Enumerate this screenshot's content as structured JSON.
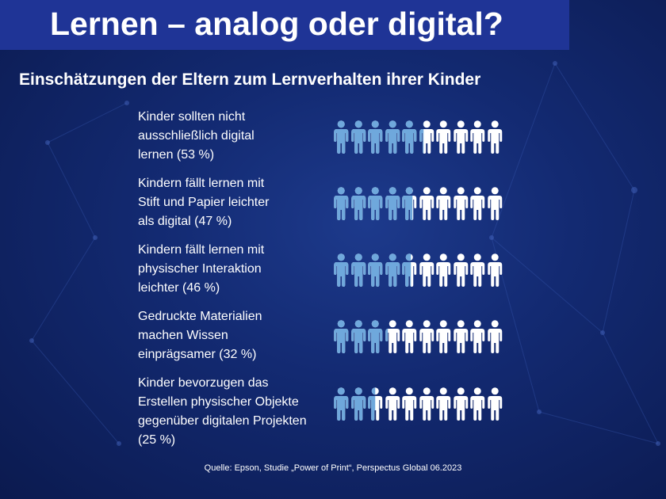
{
  "title": "Lernen – analog oder digital?",
  "subtitle": "Einschätzungen der Eltern zum Lernverhalten ihrer Kinder",
  "source": "Quelle: Epson, Studie „Power of Print“, Perspectus Global 06.2023",
  "colors": {
    "filled": "#6fa8dc",
    "empty": "#ffffff",
    "title_bar": "#1f3496",
    "background": "#132a72"
  },
  "icon": "person-icon",
  "chart_data": {
    "type": "pictograph",
    "unit": "%",
    "icons_per_row": 10,
    "items": [
      {
        "label": "Kinder sollten nicht ausschließlich digital lernen (53 %)",
        "value": 53
      },
      {
        "label": "Kindern fällt lernen mit Stift und Papier leichter als digital (47 %)",
        "value": 47
      },
      {
        "label": "Kindern fällt lernen mit physischer Interaktion leichter (46 %)",
        "value": 46
      },
      {
        "label": "Gedruckte Materialien machen Wissen einprägsamer  (32 %)",
        "value": 32
      },
      {
        "label": "Kinder bevorzugen das Erstellen physischer Objekte gegenüber digitalen Projekten (25 %)",
        "value": 25
      }
    ]
  }
}
